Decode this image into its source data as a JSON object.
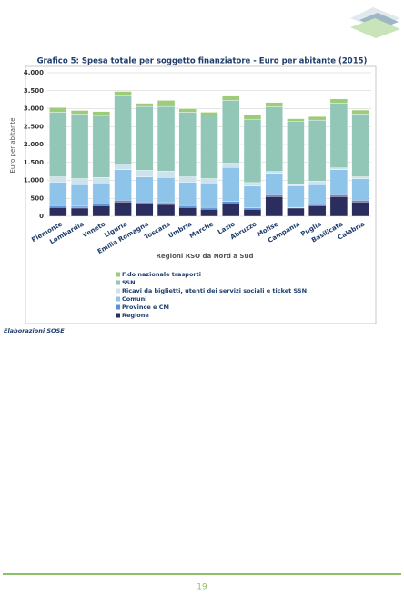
{
  "chart_data": {
    "type": "stacked_bar",
    "title": "Grafico 5: Spesa totale per soggetto finanziatore - Euro per abitante (2015)",
    "x_label": "Regioni RSO da Nord a Sud",
    "y_label": "Euro per abitante",
    "categories": [
      "Piemonte",
      "Lombardia",
      "Veneto",
      "Liguria",
      "Emilia Romagna",
      "Toscana",
      "Umbria",
      "Marche",
      "Lazio",
      "Abruzzo",
      "Molise",
      "Campania",
      "Puglia",
      "Basilicata",
      "Calabria"
    ],
    "series": [
      {
        "name": "Regione",
        "color": "#2b2d5e",
        "values": [
          250,
          230,
          300,
          400,
          350,
          330,
          250,
          200,
          350,
          200,
          550,
          230,
          300,
          550,
          400
        ]
      },
      {
        "name": "Province e CM",
        "color": "#5b8fd6",
        "values": [
          50,
          50,
          50,
          50,
          50,
          50,
          50,
          50,
          60,
          40,
          50,
          20,
          30,
          50,
          50
        ]
      },
      {
        "name": "Comuni",
        "color": "#8ec4ea",
        "values": [
          650,
          600,
          550,
          850,
          700,
          700,
          650,
          650,
          950,
          600,
          600,
          600,
          550,
          700,
          600
        ]
      },
      {
        "name": "Ricavi da biglietti, utenti dei servizi sociali e ticket SSN",
        "color": "#cce3ee",
        "values": [
          150,
          170,
          180,
          150,
          180,
          180,
          150,
          150,
          120,
          100,
          50,
          30,
          100,
          50,
          50
        ]
      },
      {
        "name": "SSN",
        "color": "#92c7b8",
        "values": [
          1800,
          1800,
          1730,
          1900,
          1780,
          1800,
          1800,
          1780,
          1750,
          1750,
          1800,
          1760,
          1700,
          1800,
          1750
        ]
      },
      {
        "name": "F.do nazionale trasporti",
        "color": "#9ccc78",
        "values": [
          130,
          100,
          110,
          130,
          90,
          170,
          100,
          70,
          120,
          130,
          120,
          80,
          100,
          120,
          110
        ]
      }
    ],
    "ylim": [
      0,
      4000
    ],
    "yticks": [
      0,
      500,
      {
        "value": 1000,
        "label": "1.000"
      },
      {
        "value": 1500,
        "label": "1.500"
      },
      {
        "value": 2000,
        "label": "2.000"
      },
      {
        "value": 2500,
        "label": "2.500"
      },
      {
        "value": 3000,
        "label": "3.000"
      },
      {
        "value": 3500,
        "label": "3.500"
      },
      {
        "value": 4000,
        "label": "4.000"
      }
    ],
    "grid": true
  },
  "note": "Elaborazioni SOSE",
  "page_number": "19"
}
